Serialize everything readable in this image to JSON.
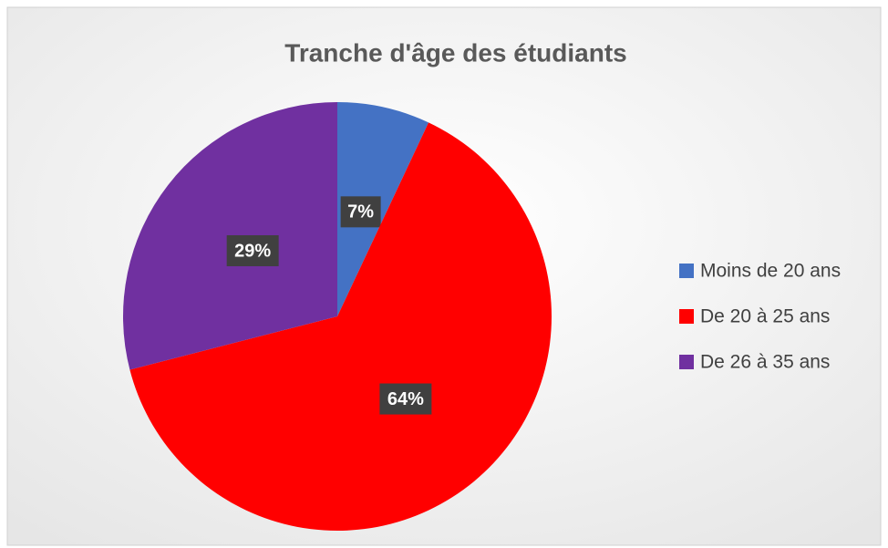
{
  "chart_data": {
    "type": "pie",
    "title": "Tranche d'âge des étudiants",
    "categories": [
      "Moins de 20 ans",
      "De 20 à 25 ans",
      "De 26 à 35 ans"
    ],
    "values": [
      7,
      64,
      29
    ],
    "value_labels": [
      "7%",
      "64%",
      "29%"
    ],
    "colors": [
      "#4472c4",
      "#ff0000",
      "#7030a0"
    ],
    "legend": "right"
  }
}
